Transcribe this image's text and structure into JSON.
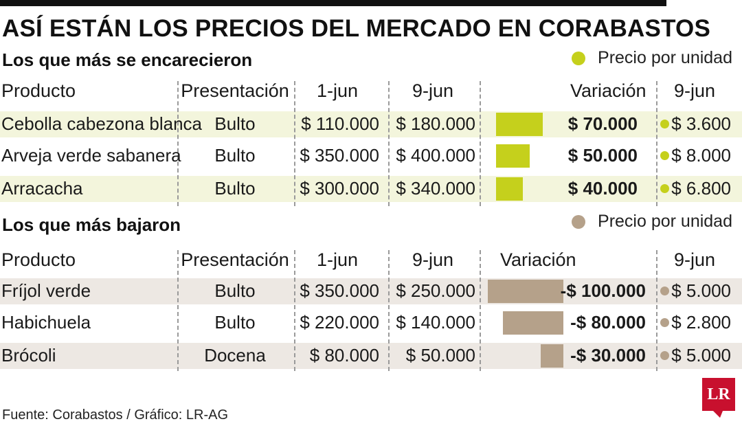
{
  "title": "ASÍ ESTÁN LOS PRECIOS DEL MERCADO EN CORABASTOS",
  "colors": {
    "rise": "#c5d01c",
    "fall": "#b5a18a",
    "rise_row": "#f3f5dc",
    "fall_row": "#ede8e3",
    "logo": "#c8102e"
  },
  "sections": [
    {
      "title": "Los que más se encarecieron",
      "legend": "Precio por unidad",
      "headers": {
        "product": "Producto",
        "presentation": "Presentación",
        "d1": "1-jun",
        "d2": "9-jun",
        "variation": "Variación",
        "unit": "9-jun"
      },
      "rows": [
        {
          "product": "Cebolla cabezona blanca",
          "presentation": "Bulto",
          "d1": "$ 110.000",
          "d2": "$ 180.000",
          "variation": "$ 70.000",
          "unit": "$ 3.600",
          "shaded": true
        },
        {
          "product": "Arveja verde sabanera",
          "presentation": "Bulto",
          "d1": "$ 350.000",
          "d2": "$ 400.000",
          "variation": "$ 50.000",
          "unit": "$ 8.000",
          "shaded": false
        },
        {
          "product": "Arracacha",
          "presentation": "Bulto",
          "d1": "$ 300.000",
          "d2": "$ 340.000",
          "variation": "$ 40.000",
          "unit": "$ 6.800",
          "shaded": true
        }
      ]
    },
    {
      "title": "Los que más bajaron",
      "legend": "Precio por unidad",
      "headers": {
        "product": "Producto",
        "presentation": "Presentación",
        "d1": "1-jun",
        "d2": "9-jun",
        "variation": "Variación",
        "unit": "9-jun"
      },
      "rows": [
        {
          "product": "Fríjol verde",
          "presentation": "Bulto",
          "d1": "$ 350.000",
          "d2": "$ 250.000",
          "variation": "-$ 100.000",
          "unit": "$ 5.000",
          "shaded": true
        },
        {
          "product": "Habichuela",
          "presentation": "Bulto",
          "d1": "$ 220.000",
          "d2": "$ 140.000",
          "variation": "-$ 80.000",
          "unit": "$ 2.800",
          "shaded": false
        },
        {
          "product": "Brócoli",
          "presentation": "Docena",
          "d1": "$ 80.000",
          "d2": "$ 50.000",
          "variation": "-$ 30.000",
          "unit": "$ 5.000",
          "shaded": true
        }
      ]
    }
  ],
  "footer": "Fuente: Corabastos / Gráfico: LR-AG",
  "logo_text": "LR",
  "chart_data": [
    {
      "type": "bar",
      "categories": [
        "Cebolla cabezona blanca",
        "Arveja verde sabanera",
        "Arracacha"
      ],
      "series": [
        {
          "values": [
            70000,
            50000,
            40000
          ]
        }
      ]
    },
    {
      "type": "bar",
      "categories": [
        "Fríjol verde",
        "Habichuela",
        "Brócoli"
      ],
      "series": [
        {
          "values": [
            -100000,
            -80000,
            -30000
          ]
        }
      ]
    }
  ]
}
